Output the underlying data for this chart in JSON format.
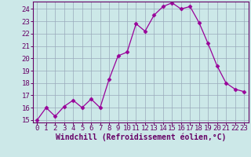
{
  "x": [
    0,
    1,
    2,
    3,
    4,
    5,
    6,
    7,
    8,
    9,
    10,
    11,
    12,
    13,
    14,
    15,
    16,
    17,
    18,
    19,
    20,
    21,
    22,
    23
  ],
  "y": [
    15.0,
    16.0,
    15.3,
    16.1,
    16.6,
    16.0,
    16.7,
    16.0,
    18.3,
    20.2,
    20.5,
    22.8,
    22.2,
    23.5,
    24.2,
    24.5,
    24.0,
    24.2,
    22.9,
    21.2,
    19.4,
    18.0,
    17.5,
    17.3
  ],
  "line_color": "#990099",
  "marker": "D",
  "marker_size": 2.5,
  "bg_color": "#cce8e8",
  "grid_color": "#99aabb",
  "xlabel": "Windchill (Refroidissement éolien,°C)",
  "ylim_min": 14.8,
  "ylim_max": 24.6,
  "xlim_min": -0.5,
  "xlim_max": 23.5,
  "yticks": [
    15,
    16,
    17,
    18,
    19,
    20,
    21,
    22,
    23,
    24
  ],
  "xticks": [
    0,
    1,
    2,
    3,
    4,
    5,
    6,
    7,
    8,
    9,
    10,
    11,
    12,
    13,
    14,
    15,
    16,
    17,
    18,
    19,
    20,
    21,
    22,
    23
  ],
  "tick_color": "#660066",
  "label_color": "#660066",
  "axis_color": "#660066",
  "font_size_xlabel": 7.0,
  "font_size_ytick": 6.5,
  "font_size_xtick": 6.5
}
